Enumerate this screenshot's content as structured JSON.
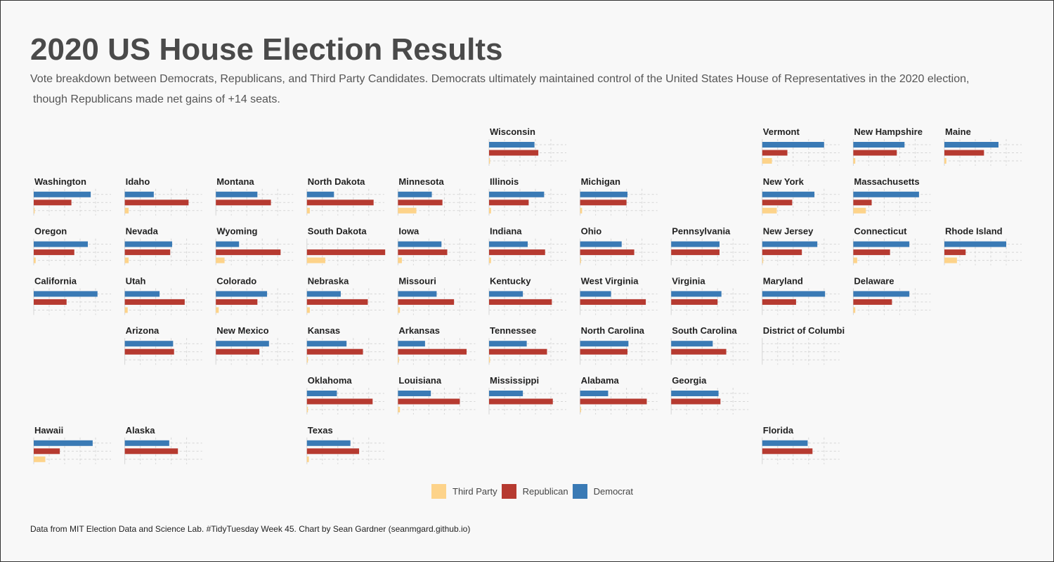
{
  "title": "2020 US House Election Results",
  "subtitle_line1": "Vote breakdown between Democrats, Republicans, and Third Party Candidates. Democrats ultimately maintained control of the United States House of Representatives in the 2020 election,",
  "subtitle_line2": "though Republicans made net gains of +14 seats.",
  "caption": "Data from MIT Election Data and Science Lab. #TidyTuesday Week 45. Chart by Sean Gardner (seanmgard.github.io)",
  "colors": {
    "democrat": "#3a7ab5",
    "republican": "#b63a30",
    "third_party": "#fdd38a"
  },
  "legend": [
    {
      "label": "Third Party",
      "color": "#fdd38a"
    },
    {
      "label": "Republican",
      "color": "#b63a30"
    },
    {
      "label": "Democrat",
      "color": "#3a7ab5"
    }
  ],
  "chart_data": {
    "type": "bar",
    "layout": "small-multiples-tile-grid",
    "orientation": "horizontal",
    "series_order": [
      "Democrat",
      "Republican",
      "Third Party"
    ],
    "xlim": [
      0,
      80
    ],
    "unit": "percent of vote",
    "grid": true,
    "legend_position": "bottom",
    "states": [
      {
        "name": "Wisconsin",
        "col": 5,
        "row": 0,
        "dem": 47,
        "rep": 51,
        "third": 1
      },
      {
        "name": "Vermont",
        "col": 8,
        "row": 0,
        "dem": 64,
        "rep": 26,
        "third": 10
      },
      {
        "name": "New Hampshire",
        "col": 9,
        "row": 0,
        "dem": 53,
        "rep": 45,
        "third": 2
      },
      {
        "name": "Maine",
        "col": 10,
        "row": 0,
        "dem": 56,
        "rep": 41,
        "third": 2
      },
      {
        "name": "Washington",
        "col": 0,
        "row": 1,
        "dem": 59,
        "rep": 39,
        "third": 1
      },
      {
        "name": "Idaho",
        "col": 1,
        "row": 1,
        "dem": 30,
        "rep": 66,
        "third": 4
      },
      {
        "name": "Montana",
        "col": 2,
        "row": 1,
        "dem": 43,
        "rep": 57,
        "third": 0
      },
      {
        "name": "North Dakota",
        "col": 3,
        "row": 1,
        "dem": 28,
        "rep": 69,
        "third": 3
      },
      {
        "name": "Minnesota",
        "col": 4,
        "row": 1,
        "dem": 35,
        "rep": 46,
        "third": 19
      },
      {
        "name": "Illinois",
        "col": 5,
        "row": 1,
        "dem": 57,
        "rep": 41,
        "third": 2
      },
      {
        "name": "Michigan",
        "col": 6,
        "row": 1,
        "dem": 49,
        "rep": 48,
        "third": 2
      },
      {
        "name": "New York",
        "col": 8,
        "row": 1,
        "dem": 54,
        "rep": 31,
        "third": 15
      },
      {
        "name": "Massachusetts",
        "col": 9,
        "row": 1,
        "dem": 68,
        "rep": 19,
        "third": 13
      },
      {
        "name": "Oregon",
        "col": 0,
        "row": 2,
        "dem": 56,
        "rep": 42,
        "third": 2
      },
      {
        "name": "Nevada",
        "col": 1,
        "row": 2,
        "dem": 49,
        "rep": 47,
        "third": 4
      },
      {
        "name": "Wyoming",
        "col": 2,
        "row": 2,
        "dem": 24,
        "rep": 67,
        "third": 9
      },
      {
        "name": "South Dakota",
        "col": 3,
        "row": 2,
        "dem": 0,
        "rep": 81,
        "third": 19
      },
      {
        "name": "Iowa",
        "col": 4,
        "row": 2,
        "dem": 45,
        "rep": 51,
        "third": 4
      },
      {
        "name": "Indiana",
        "col": 5,
        "row": 2,
        "dem": 40,
        "rep": 58,
        "third": 2
      },
      {
        "name": "Ohio",
        "col": 6,
        "row": 2,
        "dem": 43,
        "rep": 56,
        "third": 1
      },
      {
        "name": "Pennsylvania",
        "col": 7,
        "row": 2,
        "dem": 50,
        "rep": 50,
        "third": 0
      },
      {
        "name": "New Jersey",
        "col": 8,
        "row": 2,
        "dem": 57,
        "rep": 41,
        "third": 1
      },
      {
        "name": "Connecticut",
        "col": 9,
        "row": 2,
        "dem": 58,
        "rep": 38,
        "third": 4
      },
      {
        "name": "Rhode Island",
        "col": 10,
        "row": 2,
        "dem": 64,
        "rep": 22,
        "third": 13
      },
      {
        "name": "California",
        "col": 0,
        "row": 3,
        "dem": 66,
        "rep": 34,
        "third": 0
      },
      {
        "name": "Utah",
        "col": 1,
        "row": 3,
        "dem": 36,
        "rep": 62,
        "third": 3
      },
      {
        "name": "Colorado",
        "col": 2,
        "row": 3,
        "dem": 53,
        "rep": 43,
        "third": 3
      },
      {
        "name": "Nebraska",
        "col": 3,
        "row": 3,
        "dem": 35,
        "rep": 63,
        "third": 3
      },
      {
        "name": "Missouri",
        "col": 4,
        "row": 3,
        "dem": 40,
        "rep": 58,
        "third": 2
      },
      {
        "name": "Kentucky",
        "col": 5,
        "row": 3,
        "dem": 35,
        "rep": 65,
        "third": 0
      },
      {
        "name": "West Virginia",
        "col": 6,
        "row": 3,
        "dem": 32,
        "rep": 68,
        "third": 0
      },
      {
        "name": "Virginia",
        "col": 7,
        "row": 3,
        "dem": 52,
        "rep": 48,
        "third": 0
      },
      {
        "name": "Maryland",
        "col": 8,
        "row": 3,
        "dem": 65,
        "rep": 35,
        "third": 0
      },
      {
        "name": "Delaware",
        "col": 9,
        "row": 3,
        "dem": 58,
        "rep": 40,
        "third": 2
      },
      {
        "name": "Arizona",
        "col": 1,
        "row": 4,
        "dem": 50,
        "rep": 51,
        "third": 0
      },
      {
        "name": "New Mexico",
        "col": 2,
        "row": 4,
        "dem": 55,
        "rep": 45,
        "third": 0
      },
      {
        "name": "Kansas",
        "col": 3,
        "row": 4,
        "dem": 41,
        "rep": 58,
        "third": 1
      },
      {
        "name": "Arkansas",
        "col": 4,
        "row": 4,
        "dem": 28,
        "rep": 71,
        "third": 1
      },
      {
        "name": "Tennessee",
        "col": 5,
        "row": 4,
        "dem": 39,
        "rep": 60,
        "third": 1
      },
      {
        "name": "North Carolina",
        "col": 6,
        "row": 4,
        "dem": 50,
        "rep": 49,
        "third": 0
      },
      {
        "name": "South Carolina",
        "col": 7,
        "row": 4,
        "dem": 43,
        "rep": 57,
        "third": 0
      },
      {
        "name": "District of Columbi",
        "col": 8,
        "row": 4,
        "dem": 0,
        "rep": 0,
        "third": 0
      },
      {
        "name": "Oklahoma",
        "col": 3,
        "row": 5,
        "dem": 31,
        "rep": 68,
        "third": 1
      },
      {
        "name": "Louisiana",
        "col": 4,
        "row": 5,
        "dem": 34,
        "rep": 64,
        "third": 2
      },
      {
        "name": "Mississippi",
        "col": 5,
        "row": 5,
        "dem": 35,
        "rep": 66,
        "third": 0
      },
      {
        "name": "Alabama",
        "col": 6,
        "row": 5,
        "dem": 29,
        "rep": 69,
        "third": 1
      },
      {
        "name": "Georgia",
        "col": 7,
        "row": 5,
        "dem": 49,
        "rep": 51,
        "third": 0
      },
      {
        "name": "Hawaii",
        "col": 0,
        "row": 6,
        "dem": 61,
        "rep": 27,
        "third": 12
      },
      {
        "name": "Alaska",
        "col": 1,
        "row": 6,
        "dem": 46,
        "rep": 55,
        "third": 0
      },
      {
        "name": "Texas",
        "col": 3,
        "row": 6,
        "dem": 45,
        "rep": 54,
        "third": 2
      },
      {
        "name": "Florida",
        "col": 8,
        "row": 6,
        "dem": 47,
        "rep": 52,
        "third": 0
      }
    ]
  }
}
